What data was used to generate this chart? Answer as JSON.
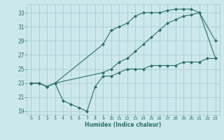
{
  "line1_x": [
    0,
    1,
    2,
    3,
    9,
    10,
    11,
    12,
    13,
    14,
    15,
    16,
    17,
    18,
    19,
    20,
    21,
    23
  ],
  "line1_y": [
    23,
    23,
    22.5,
    23,
    28.5,
    30.5,
    31,
    31.5,
    32.5,
    33,
    33,
    33,
    33.3,
    33.5,
    33.5,
    33.5,
    33,
    29
  ],
  "line2_x": [
    0,
    1,
    2,
    3,
    9,
    10,
    11,
    12,
    13,
    14,
    15,
    16,
    17,
    18,
    19,
    20,
    21,
    23
  ],
  "line2_y": [
    23,
    23,
    22.5,
    23,
    24.5,
    25,
    26,
    26.5,
    27.5,
    28.5,
    29.5,
    30.5,
    31.5,
    32,
    32.5,
    32.7,
    33,
    26.5
  ],
  "line3_x": [
    0,
    1,
    2,
    3,
    4,
    5,
    6,
    7,
    8,
    9,
    10,
    11,
    12,
    13,
    14,
    15,
    16,
    17,
    18,
    19,
    20,
    21,
    22,
    23
  ],
  "line3_y": [
    23,
    23,
    22.5,
    23,
    20.5,
    20,
    19.5,
    19,
    22.5,
    24,
    24,
    24.5,
    25,
    25,
    25,
    25.5,
    25.5,
    25.5,
    25.5,
    26,
    26,
    26,
    26.5,
    26.5
  ],
  "color": "#2a7068",
  "bg_color": "#cde8ec",
  "grid_color": "#a8cdd4",
  "xlabel": "Humidex (Indice chaleur)",
  "xlim": [
    -0.5,
    23.5
  ],
  "ylim": [
    18.5,
    34.2
  ],
  "yticks": [
    19,
    21,
    23,
    25,
    27,
    29,
    31,
    33
  ],
  "xticks": [
    0,
    1,
    2,
    3,
    4,
    5,
    6,
    7,
    8,
    9,
    10,
    11,
    12,
    13,
    14,
    15,
    16,
    17,
    18,
    19,
    20,
    21,
    22,
    23
  ]
}
